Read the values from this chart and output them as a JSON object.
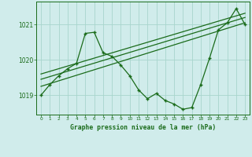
{
  "x": [
    0,
    1,
    2,
    3,
    4,
    5,
    6,
    7,
    8,
    9,
    10,
    11,
    12,
    13,
    14,
    15,
    16,
    17,
    18,
    19,
    20,
    21,
    22,
    23
  ],
  "y_main": [
    1019.0,
    1019.3,
    1019.55,
    1019.75,
    1019.9,
    1020.75,
    1020.78,
    1020.2,
    1020.1,
    1019.85,
    1019.55,
    1019.15,
    1018.9,
    1019.05,
    1018.85,
    1018.75,
    1018.6,
    1018.65,
    1019.3,
    1020.05,
    1020.85,
    1021.05,
    1021.45,
    1021.0
  ],
  "trend1_x": [
    0,
    23
  ],
  "trend1_y": [
    1019.25,
    1021.05
  ],
  "trend2_x": [
    0,
    23
  ],
  "trend2_y": [
    1019.45,
    1021.2
  ],
  "trend3_x": [
    0,
    23
  ],
  "trend3_y": [
    1019.6,
    1021.32
  ],
  "line_color": "#1a6b1a",
  "bg_color": "#d0eceb",
  "grid_color": "#a8d5cc",
  "xlabel": "Graphe pression niveau de la mer (hPa)",
  "yticks": [
    1019,
    1020,
    1021
  ],
  "xticks": [
    0,
    1,
    2,
    3,
    4,
    5,
    6,
    7,
    8,
    9,
    10,
    11,
    12,
    13,
    14,
    15,
    16,
    17,
    18,
    19,
    20,
    21,
    22,
    23
  ],
  "ylim": [
    1018.45,
    1021.65
  ],
  "xlim": [
    -0.5,
    23.5
  ]
}
